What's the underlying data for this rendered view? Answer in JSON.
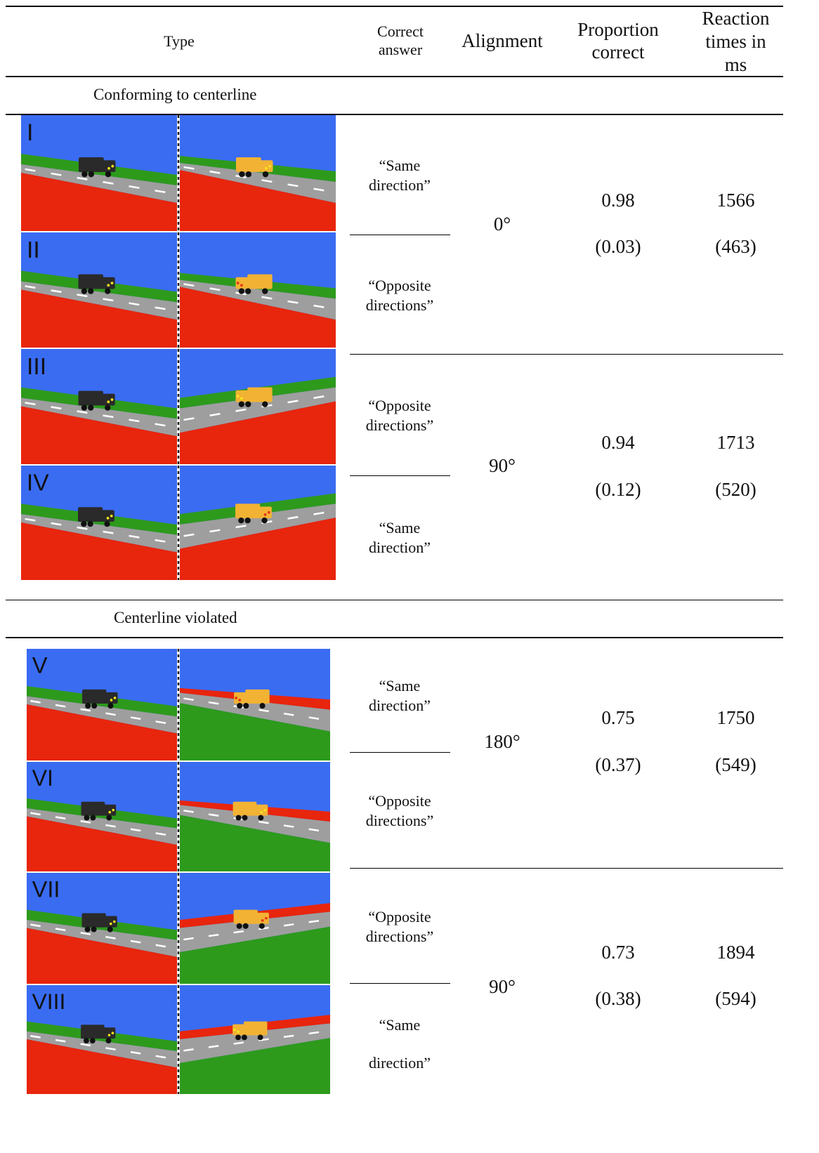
{
  "headers": {
    "type": "Type",
    "correct_answer": [
      "Correct",
      "answer"
    ],
    "alignment": "Alignment",
    "proportion_correct": [
      "Proportion",
      "correct"
    ],
    "reaction_times": [
      "Reaction",
      "times in",
      "ms"
    ]
  },
  "sections": [
    {
      "label": "Conforming to centerline",
      "groups": [
        {
          "answers": [
            [
              "“Same",
              "direction”"
            ],
            [
              "“Opposite",
              "directions”"
            ]
          ],
          "alignment": "0°",
          "proportion": "0.98",
          "proportion_sd": "(0.03)",
          "rt": "1566",
          "rt_sd": "(463)"
        },
        {
          "answers": [
            [
              "“Opposite",
              "directions”"
            ],
            [
              "“Same",
              "direction”"
            ]
          ],
          "alignment": "90°",
          "proportion": "0.94",
          "proportion_sd": "(0.12)",
          "rt": "1713",
          "rt_sd": "(520)"
        }
      ]
    },
    {
      "label": "Centerline violated",
      "groups": [
        {
          "answers": [
            [
              "“Same",
              "direction”"
            ],
            [
              "“Opposite",
              "directions”"
            ]
          ],
          "alignment": "180°",
          "proportion": "0.75",
          "proportion_sd": "(0.37)",
          "rt": "1750",
          "rt_sd": "(549)"
        },
        {
          "answers": [
            [
              "“Opposite",
              "directions”"
            ],
            [
              "“Same",
              "direction”"
            ]
          ],
          "alignment": "90°",
          "proportion": "0.73",
          "proportion_sd": "(0.38)",
          "rt": "1894",
          "rt_sd": "(594)"
        }
      ]
    }
  ],
  "panel_labels": [
    "I",
    "II",
    "III",
    "IV",
    "V",
    "VI",
    "VII",
    "VIII"
  ],
  "colors": {
    "sky": "#3a6cf2",
    "grass": "#2d9a1c",
    "ground": "#e8250d",
    "road": "#9e9e9e",
    "truck_black": "#2a2a2a",
    "truck_yellow": "#f2b233",
    "light_yellow": "#f5e61e",
    "light_red": "#e8301a"
  }
}
